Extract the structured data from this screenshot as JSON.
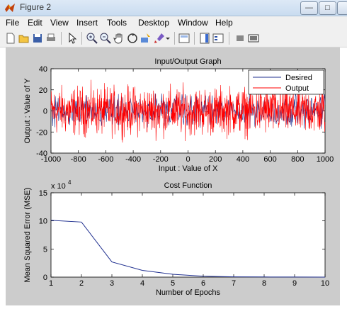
{
  "window": {
    "title": "Figure 2"
  },
  "menu": [
    "File",
    "Edit",
    "View",
    "Insert",
    "Tools",
    "Desktop",
    "Window",
    "Help"
  ],
  "toolbar_icons": [
    "new-figure-icon",
    "open-file-icon",
    "save-icon",
    "print-icon",
    "pointer-icon",
    "zoom-in-icon",
    "zoom-out-icon",
    "pan-hand-icon",
    "rotate-3d-icon",
    "data-cursor-icon",
    "brush-icon",
    "brush-dropdown-icon",
    "link-plot-icon",
    "colorbar-icon",
    "legend-icon",
    "hide-plot-tools-icon",
    "show-plot-tools-icon"
  ],
  "colors": {
    "figure_bg": "#cccccc",
    "axes_bg": "#ffffff",
    "desired": "#1f2f8f",
    "output": "#ff0000"
  },
  "chart_data": [
    {
      "type": "line",
      "title": "Input/Output Graph",
      "xlabel": "Input   :   Value of X",
      "ylabel": "Output   :   Value of Y",
      "xlim": [
        -1000,
        1000
      ],
      "ylim": [
        -40,
        40
      ],
      "xticks": [
        "-1000",
        "-800",
        "-600",
        "-400",
        "-200",
        "0",
        "200",
        "400",
        "600",
        "800",
        "1000"
      ],
      "yticks": [
        "40",
        "20",
        "0",
        "-20",
        "-40"
      ],
      "legend_position": "top-right",
      "series": [
        {
          "name": "Desired",
          "description_values": "noise around 0 (hidden beneath Output)",
          "values_range": [
            -25,
            25
          ]
        },
        {
          "name": "Output",
          "values_range": [
            -30,
            33
          ],
          "mean": 0
        }
      ],
      "x_step": 2
    },
    {
      "type": "line",
      "title": "Cost Function",
      "xlabel": "Number of Epochs",
      "ylabel": "Mean Squared Error (MSE)",
      "exponent_label": "x 10",
      "exponent_power": "4",
      "xlim": [
        1,
        10
      ],
      "ylim": [
        0,
        15
      ],
      "xticks": [
        "1",
        "2",
        "3",
        "4",
        "5",
        "6",
        "7",
        "8",
        "9",
        "10"
      ],
      "yticks": [
        "15",
        "10",
        "5",
        "0"
      ],
      "x": [
        1,
        2,
        3,
        4,
        5,
        6,
        7,
        8,
        9,
        10
      ],
      "y": [
        10.1,
        9.8,
        2.7,
        1.2,
        0.5,
        0.15,
        0.05,
        0.02,
        0.01,
        0.0
      ]
    }
  ]
}
